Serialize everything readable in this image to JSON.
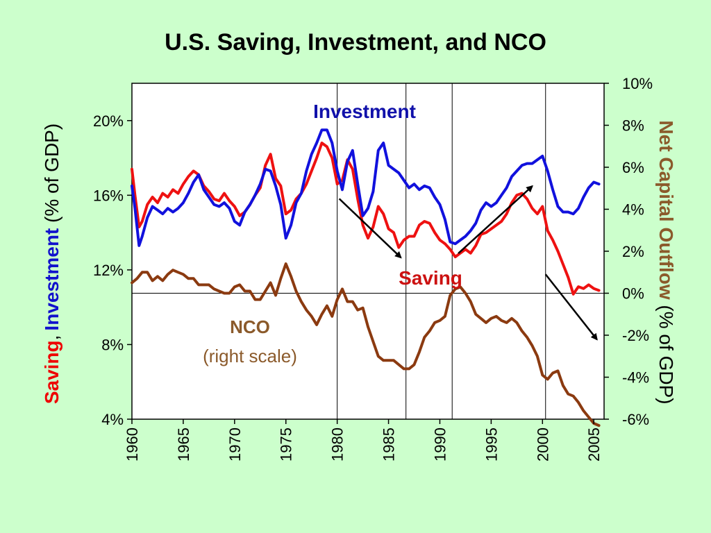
{
  "chart_data": {
    "type": "line",
    "title": "U.S. Saving, Investment, and NCO",
    "left_axis": {
      "label_parts": {
        "saving": "Saving",
        "comma": ",",
        "investment": "Investment",
        "rest": " (% of GDP)"
      },
      "ylim": [
        4,
        22
      ],
      "ticks": [
        4,
        8,
        12,
        16,
        20
      ],
      "tick_labels": [
        "4%",
        "8%",
        "12%",
        "16%",
        "20%"
      ]
    },
    "right_axis": {
      "label_parts": {
        "bold": "Net Capital Outflow",
        "rest": " (% of GDP)"
      },
      "ylim": [
        -6,
        10
      ],
      "ticks": [
        -6,
        -4,
        -2,
        0,
        2,
        4,
        6,
        8,
        10
      ],
      "tick_labels": [
        "-6%",
        "-4%",
        "-2%",
        "0%",
        "2%",
        "4%",
        "6%",
        "8%",
        "10%"
      ]
    },
    "x_axis": {
      "xlim": [
        1960,
        2006
      ],
      "ticks": [
        1960,
        1965,
        1970,
        1975,
        1980,
        1985,
        1990,
        1995,
        2000,
        2005
      ],
      "tick_labels": [
        "1960",
        "1965",
        "1970",
        "1975",
        "1980",
        "1985",
        "1990",
        "1995",
        "2000",
        "2005"
      ]
    },
    "reference_line": {
      "axis": "right",
      "y": 0
    },
    "vertical_lines": [
      1980,
      1986.7,
      1991.2,
      2000.3
    ],
    "colors": {
      "saving": "#ee1111",
      "investment": "#1111dd",
      "nco": "#8b3a10",
      "background": "#ccffcc"
    },
    "series": [
      {
        "name": "Saving",
        "axis": "left",
        "color": "#ee1111",
        "points": [
          [
            1960,
            17.4
          ],
          [
            1960.3,
            16
          ],
          [
            1960.7,
            14.3
          ],
          [
            1961,
            14.6
          ],
          [
            1961.5,
            15.5
          ],
          [
            1962,
            15.9
          ],
          [
            1962.5,
            15.6
          ],
          [
            1963,
            16.1
          ],
          [
            1963.5,
            15.9
          ],
          [
            1964,
            16.3
          ],
          [
            1964.5,
            16.1
          ],
          [
            1965,
            16.6
          ],
          [
            1965.5,
            17.0
          ],
          [
            1966,
            17.3
          ],
          [
            1966.5,
            17.1
          ],
          [
            1967,
            16.5
          ],
          [
            1967.5,
            16.2
          ],
          [
            1968,
            15.8
          ],
          [
            1968.5,
            15.7
          ],
          [
            1969,
            16.1
          ],
          [
            1969.5,
            15.7
          ],
          [
            1970,
            15.4
          ],
          [
            1970.5,
            14.9
          ],
          [
            1971,
            15.1
          ],
          [
            1971.5,
            15.5
          ],
          [
            1972,
            16.0
          ],
          [
            1972.5,
            16.4
          ],
          [
            1973,
            17.6
          ],
          [
            1973.5,
            18.2
          ],
          [
            1974,
            16.9
          ],
          [
            1974.5,
            16.5
          ],
          [
            1975,
            15.0
          ],
          [
            1975.5,
            15.2
          ],
          [
            1976,
            15.8
          ],
          [
            1976.5,
            16.1
          ],
          [
            1977,
            16.6
          ],
          [
            1977.5,
            17.3
          ],
          [
            1978,
            18.0
          ],
          [
            1978.5,
            18.8
          ],
          [
            1979,
            18.6
          ],
          [
            1979.5,
            18.0
          ],
          [
            1980,
            16.6
          ],
          [
            1980.5,
            16.8
          ],
          [
            1981,
            17.9
          ],
          [
            1981.5,
            17.4
          ],
          [
            1982,
            15.8
          ],
          [
            1982.5,
            14.4
          ],
          [
            1983,
            13.7
          ],
          [
            1983.5,
            14.3
          ],
          [
            1984,
            15.4
          ],
          [
            1984.5,
            15.0
          ],
          [
            1985,
            14.2
          ],
          [
            1985.5,
            14.0
          ],
          [
            1986,
            13.2
          ],
          [
            1986.5,
            13.6
          ],
          [
            1987,
            13.8
          ],
          [
            1987.5,
            13.8
          ],
          [
            1988,
            14.4
          ],
          [
            1988.5,
            14.6
          ],
          [
            1989,
            14.5
          ],
          [
            1989.5,
            14.0
          ],
          [
            1990,
            13.6
          ],
          [
            1990.5,
            13.4
          ],
          [
            1991,
            13.1
          ],
          [
            1991.5,
            12.7
          ],
          [
            1992,
            12.9
          ],
          [
            1992.5,
            13.1
          ],
          [
            1993,
            12.9
          ],
          [
            1993.5,
            13.3
          ],
          [
            1994,
            13.9
          ],
          [
            1994.5,
            14.0
          ],
          [
            1995,
            14.2
          ],
          [
            1995.5,
            14.4
          ],
          [
            1996,
            14.6
          ],
          [
            1996.5,
            15.0
          ],
          [
            1997,
            15.6
          ],
          [
            1997.5,
            16.0
          ],
          [
            1998,
            16.1
          ],
          [
            1998.5,
            15.8
          ],
          [
            1999,
            15.3
          ],
          [
            1999.5,
            15.0
          ],
          [
            2000,
            15.4
          ],
          [
            2000.5,
            14.1
          ],
          [
            2001,
            13.6
          ],
          [
            2001.5,
            13.0
          ],
          [
            2002,
            12.3
          ],
          [
            2002.5,
            11.6
          ],
          [
            2003,
            10.7
          ],
          [
            2003.5,
            11.1
          ],
          [
            2004,
            11.0
          ],
          [
            2004.5,
            11.2
          ],
          [
            2005,
            11.0
          ],
          [
            2005.5,
            10.9
          ]
        ]
      },
      {
        "name": "Investment",
        "axis": "left",
        "color": "#1111dd",
        "points": [
          [
            1960,
            16.5
          ],
          [
            1960.3,
            15.3
          ],
          [
            1960.7,
            13.3
          ],
          [
            1961,
            13.8
          ],
          [
            1961.5,
            14.8
          ],
          [
            1962,
            15.4
          ],
          [
            1962.5,
            15.2
          ],
          [
            1963,
            15.0
          ],
          [
            1963.5,
            15.3
          ],
          [
            1964,
            15.1
          ],
          [
            1964.5,
            15.3
          ],
          [
            1965,
            15.6
          ],
          [
            1965.5,
            16.1
          ],
          [
            1966,
            16.7
          ],
          [
            1966.5,
            17.1
          ],
          [
            1967,
            16.3
          ],
          [
            1967.5,
            15.9
          ],
          [
            1968,
            15.5
          ],
          [
            1968.5,
            15.4
          ],
          [
            1969,
            15.6
          ],
          [
            1969.5,
            15.3
          ],
          [
            1970,
            14.6
          ],
          [
            1970.5,
            14.4
          ],
          [
            1971,
            15.1
          ],
          [
            1971.5,
            15.5
          ],
          [
            1972,
            16.0
          ],
          [
            1972.5,
            16.6
          ],
          [
            1973,
            17.4
          ],
          [
            1973.5,
            17.3
          ],
          [
            1974,
            16.5
          ],
          [
            1974.5,
            15.5
          ],
          [
            1975,
            13.7
          ],
          [
            1975.5,
            14.4
          ],
          [
            1976,
            15.6
          ],
          [
            1976.5,
            16.1
          ],
          [
            1977,
            17.3
          ],
          [
            1977.5,
            18.2
          ],
          [
            1978,
            18.8
          ],
          [
            1978.5,
            19.5
          ],
          [
            1979,
            19.5
          ],
          [
            1979.5,
            18.8
          ],
          [
            1980,
            17.3
          ],
          [
            1980.5,
            16.3
          ],
          [
            1981,
            17.8
          ],
          [
            1981.5,
            18.4
          ],
          [
            1982,
            16.6
          ],
          [
            1982.5,
            14.9
          ],
          [
            1983,
            15.3
          ],
          [
            1983.5,
            16.2
          ],
          [
            1984,
            18.4
          ],
          [
            1984.5,
            18.8
          ],
          [
            1985,
            17.6
          ],
          [
            1985.5,
            17.4
          ],
          [
            1986,
            17.2
          ],
          [
            1986.5,
            16.8
          ],
          [
            1987,
            16.4
          ],
          [
            1987.5,
            16.6
          ],
          [
            1988,
            16.3
          ],
          [
            1988.5,
            16.5
          ],
          [
            1989,
            16.4
          ],
          [
            1989.5,
            15.9
          ],
          [
            1990,
            15.5
          ],
          [
            1990.5,
            14.7
          ],
          [
            1991,
            13.5
          ],
          [
            1991.5,
            13.4
          ],
          [
            1992,
            13.6
          ],
          [
            1992.5,
            13.8
          ],
          [
            1993,
            14.1
          ],
          [
            1993.5,
            14.5
          ],
          [
            1994,
            15.2
          ],
          [
            1994.5,
            15.6
          ],
          [
            1995,
            15.4
          ],
          [
            1995.5,
            15.6
          ],
          [
            1996,
            16.0
          ],
          [
            1996.5,
            16.4
          ],
          [
            1997,
            17.0
          ],
          [
            1997.5,
            17.3
          ],
          [
            1998,
            17.6
          ],
          [
            1998.5,
            17.7
          ],
          [
            1999,
            17.7
          ],
          [
            1999.5,
            17.9
          ],
          [
            2000,
            18.1
          ],
          [
            2000.5,
            17.3
          ],
          [
            2001,
            16.3
          ],
          [
            2001.5,
            15.4
          ],
          [
            2002,
            15.1
          ],
          [
            2002.5,
            15.1
          ],
          [
            2003,
            15.0
          ],
          [
            2003.5,
            15.3
          ],
          [
            2004,
            15.9
          ],
          [
            2004.5,
            16.4
          ],
          [
            2005,
            16.7
          ],
          [
            2005.5,
            16.6
          ]
        ]
      },
      {
        "name": "NCO",
        "axis": "right",
        "color": "#8b3a10",
        "points": [
          [
            1960,
            0.5
          ],
          [
            1960.5,
            0.7
          ],
          [
            1961,
            1.0
          ],
          [
            1961.5,
            1.0
          ],
          [
            1962,
            0.6
          ],
          [
            1962.5,
            0.8
          ],
          [
            1963,
            0.6
          ],
          [
            1963.5,
            0.9
          ],
          [
            1964,
            1.1
          ],
          [
            1964.5,
            1.0
          ],
          [
            1965,
            0.9
          ],
          [
            1965.5,
            0.7
          ],
          [
            1966,
            0.7
          ],
          [
            1966.5,
            0.4
          ],
          [
            1967,
            0.4
          ],
          [
            1967.5,
            0.4
          ],
          [
            1968,
            0.2
          ],
          [
            1968.5,
            0.1
          ],
          [
            1969,
            0.0
          ],
          [
            1969.5,
            0.0
          ],
          [
            1970,
            0.3
          ],
          [
            1970.5,
            0.4
          ],
          [
            1971,
            0.1
          ],
          [
            1971.5,
            0.1
          ],
          [
            1972,
            -0.3
          ],
          [
            1972.5,
            -0.3
          ],
          [
            1973,
            0.1
          ],
          [
            1973.5,
            0.5
          ],
          [
            1974,
            -0.1
          ],
          [
            1974.5,
            0.7
          ],
          [
            1975,
            1.4
          ],
          [
            1975.5,
            0.8
          ],
          [
            1976,
            0.1
          ],
          [
            1976.5,
            -0.4
          ],
          [
            1977,
            -0.8
          ],
          [
            1977.5,
            -1.1
          ],
          [
            1978,
            -1.5
          ],
          [
            1978.5,
            -1.0
          ],
          [
            1979,
            -0.6
          ],
          [
            1979.5,
            -1.1
          ],
          [
            1980,
            -0.3
          ],
          [
            1980.5,
            0.2
          ],
          [
            1981,
            -0.4
          ],
          [
            1981.5,
            -0.4
          ],
          [
            1982,
            -0.8
          ],
          [
            1982.5,
            -0.7
          ],
          [
            1983,
            -1.6
          ],
          [
            1983.5,
            -2.3
          ],
          [
            1984,
            -3.0
          ],
          [
            1984.5,
            -3.2
          ],
          [
            1985,
            -3.2
          ],
          [
            1985.5,
            -3.2
          ],
          [
            1986,
            -3.4
          ],
          [
            1986.5,
            -3.6
          ],
          [
            1987,
            -3.6
          ],
          [
            1987.5,
            -3.4
          ],
          [
            1988,
            -2.8
          ],
          [
            1988.5,
            -2.1
          ],
          [
            1989,
            -1.8
          ],
          [
            1989.5,
            -1.4
          ],
          [
            1990,
            -1.3
          ],
          [
            1990.5,
            -1.1
          ],
          [
            1991,
            -0.1
          ],
          [
            1991.5,
            0.2
          ],
          [
            1992,
            0.3
          ],
          [
            1992.5,
            0.0
          ],
          [
            1993,
            -0.4
          ],
          [
            1993.5,
            -1.0
          ],
          [
            1994,
            -1.2
          ],
          [
            1994.5,
            -1.4
          ],
          [
            1995,
            -1.2
          ],
          [
            1995.5,
            -1.1
          ],
          [
            1996,
            -1.3
          ],
          [
            1996.5,
            -1.4
          ],
          [
            1997,
            -1.2
          ],
          [
            1997.5,
            -1.4
          ],
          [
            1998,
            -1.8
          ],
          [
            1998.5,
            -2.1
          ],
          [
            1999,
            -2.5
          ],
          [
            1999.5,
            -3.0
          ],
          [
            2000,
            -3.9
          ],
          [
            2000.5,
            -4.1
          ],
          [
            2001,
            -3.8
          ],
          [
            2001.5,
            -3.7
          ],
          [
            2002,
            -4.4
          ],
          [
            2002.5,
            -4.8
          ],
          [
            2003,
            -4.9
          ],
          [
            2003.5,
            -5.2
          ],
          [
            2004,
            -5.6
          ],
          [
            2004.5,
            -5.9
          ],
          [
            2005,
            -6.2
          ],
          [
            2005.5,
            -6.3
          ]
        ]
      }
    ],
    "annotations": {
      "investment_label": "Investment",
      "saving_label": "Saving",
      "nco_label": "NCO",
      "nco_sublabel": "(right scale)"
    },
    "arrows": [
      {
        "from": [
          1980.2,
          4.5
        ],
        "to": [
          1986.2,
          1.7
        ],
        "axis": "right"
      },
      {
        "from": [
          1991.8,
          1.9
        ],
        "to": [
          1999.0,
          5.1
        ],
        "axis": "right"
      },
      {
        "from": [
          2000.3,
          0.9
        ],
        "to": [
          2005.3,
          -2.2
        ],
        "axis": "right"
      }
    ],
    "legend": "none",
    "grid": false
  }
}
